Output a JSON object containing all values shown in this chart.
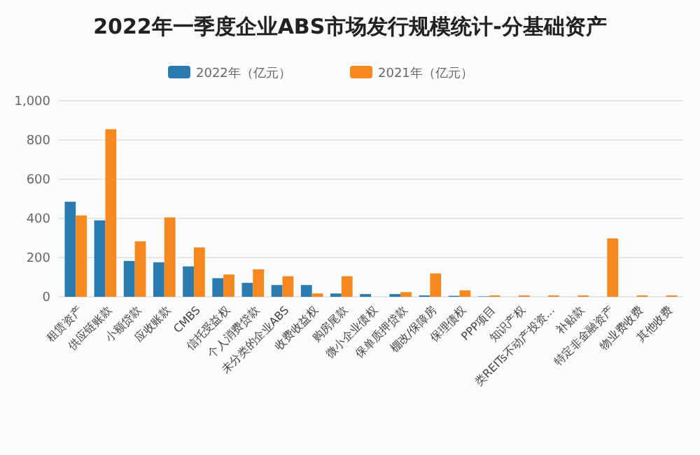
{
  "chart_data": {
    "type": "bar",
    "title": "2022年一季度企业ABS市场发行规模统计-分基础资产",
    "categories": [
      "租赁资产",
      "供应链账款",
      "小额贷款",
      "应收账款",
      "CMBS",
      "信托受益权",
      "个人消费贷款",
      "未分类的企业ABS",
      "收费收益权",
      "购房尾款",
      "微小企业债权",
      "保单质押贷款",
      "棚改/保障房",
      "保理债权",
      "PPP项目",
      "知识产权",
      "类REITs不动产投资...",
      "补贴款",
      "特定非金融资产",
      "物业费收费",
      "其他收费"
    ],
    "series": [
      {
        "name": "2022年（亿元）",
        "color": "#2b7bb0",
        "values": [
          485,
          390,
          183,
          176,
          155,
          95,
          71,
          60,
          60,
          17,
          14,
          14,
          7,
          5,
          2,
          0,
          0,
          0,
          0,
          0,
          0
        ]
      },
      {
        "name": "2021年（亿元）",
        "color": "#f5891f",
        "values": [
          415,
          855,
          283,
          405,
          252,
          114,
          140,
          105,
          17,
          105,
          0,
          24,
          119,
          33,
          7,
          7,
          7,
          7,
          298,
          7,
          7
        ]
      }
    ],
    "ylim": [
      0,
      1000
    ],
    "yticks": [
      0,
      {
        "value": 200,
        "label": "200"
      },
      400,
      600,
      800,
      {
        "value": 1000,
        "label": "1,000"
      }
    ],
    "grid": "y",
    "legend": "top"
  }
}
